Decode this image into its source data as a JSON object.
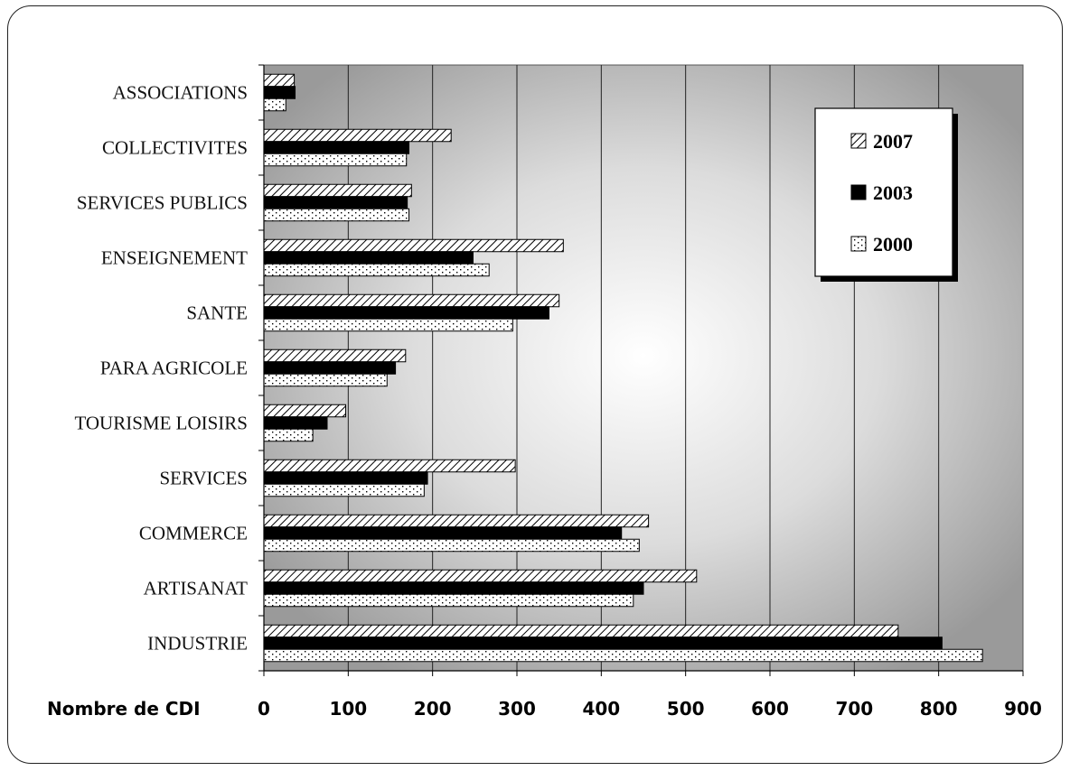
{
  "chart_data": {
    "type": "bar",
    "orientation": "horizontal",
    "categories": [
      "ASSOCIATIONS",
      "COLLECTIVITES",
      "SERVICES PUBLICS",
      "ENSEIGNEMENT",
      "SANTE",
      "PARA AGRICOLE",
      "TOURISME LOISIRS",
      "SERVICES",
      "COMMERCE",
      "ARTISANAT",
      "INDUSTRIE"
    ],
    "series": [
      {
        "name": "2007",
        "values": [
          36,
          222,
          175,
          355,
          350,
          168,
          97,
          298,
          456,
          513,
          752
        ],
        "pattern": "diagonal-hatch"
      },
      {
        "name": "2003",
        "values": [
          37,
          172,
          170,
          248,
          338,
          156,
          75,
          194,
          424,
          450,
          804
        ],
        "pattern": "solid-black"
      },
      {
        "name": "2000",
        "values": [
          26,
          169,
          172,
          267,
          295,
          146,
          58,
          190,
          445,
          438,
          852
        ],
        "pattern": "dotted"
      }
    ],
    "xlabel": "Nombre de CDI",
    "ylabel": "",
    "title": "",
    "xlim": [
      0,
      900
    ],
    "xticks": [
      "0",
      "100",
      "200",
      "300",
      "400",
      "500",
      "600",
      "700",
      "800",
      "900"
    ],
    "legend_position": "top-right",
    "grid": true,
    "background": "radial-gradient-grey"
  }
}
